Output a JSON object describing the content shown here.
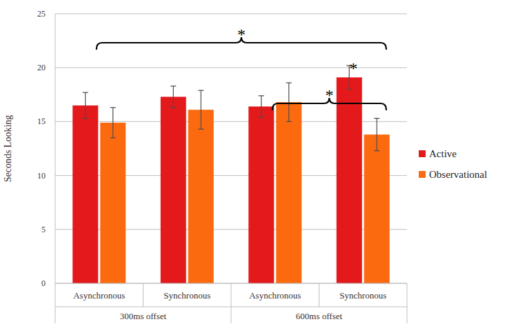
{
  "chart_data": {
    "type": "bar",
    "y_label": "Seconds Looking",
    "categories": [
      "Asynchronous",
      "Synchronous",
      "Asynchronous",
      "Synchronous"
    ],
    "category_groups": [
      "300ms offset",
      "300ms offset",
      "600ms offset",
      "600ms offset"
    ],
    "series": [
      {
        "name": "Active",
        "color": "#e3191c",
        "values": [
          16.5,
          17.3,
          16.4,
          19.1
        ],
        "errors": [
          1.2,
          1.0,
          1.0,
          1.1
        ]
      },
      {
        "name": "Observational",
        "color": "#fb6a0f",
        "values": [
          14.9,
          16.1,
          16.8,
          13.8
        ],
        "errors": [
          1.4,
          1.8,
          1.8,
          1.5
        ]
      }
    ],
    "ylim": [
      0,
      25
    ],
    "yticks": [
      0,
      5,
      10,
      15,
      20,
      25
    ],
    "grid": true,
    "legend": "right",
    "annotations": [
      {
        "text": "*",
        "from": 0,
        "to": 3
      },
      {
        "text": "*",
        "from": 2,
        "to": 3
      },
      {
        "text": "*",
        "category": 3,
        "series": 0
      }
    ]
  }
}
